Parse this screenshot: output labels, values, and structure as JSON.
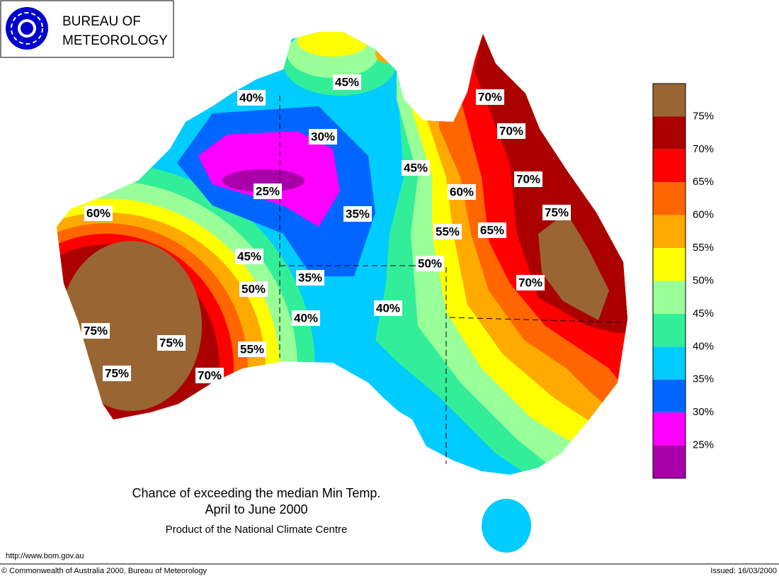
{
  "header": {
    "line1": "BUREAU OF",
    "line2": "METEOROLOGY"
  },
  "legend": {
    "colors": [
      "#996633",
      "#aa0000",
      "#ff0000",
      "#ff6600",
      "#ffaa00",
      "#ffff00",
      "#99ff99",
      "#33ee99",
      "#00ccff",
      "#0066ff",
      "#ff00ff",
      "#aa00aa"
    ],
    "labels": [
      "75%",
      "70%",
      "65%",
      "60%",
      "55%",
      "50%",
      "45%",
      "40%",
      "35%",
      "30%",
      "25%"
    ]
  },
  "map": {
    "contour_labels": [
      "40%",
      "45%",
      "30%",
      "25%",
      "35%",
      "45%",
      "60%",
      "55%",
      "50%",
      "45%",
      "35%",
      "50%",
      "40%",
      "40%",
      "55%",
      "75%",
      "75%",
      "75%",
      "70%",
      "60%",
      "70%",
      "70%",
      "70%",
      "75%",
      "65%",
      "70%"
    ]
  },
  "caption": {
    "title_lines": [
      "Chance of exceeding the median Min Temp.",
      "April to June 2000"
    ],
    "product": "Product of the National Climate Centre"
  },
  "footer": {
    "url": "http://www.bom.gov.au",
    "copyright": "© Commonwealth of Australia 2000, Bureau of Meteorology",
    "issued": "Issued: 16/03/2000"
  }
}
